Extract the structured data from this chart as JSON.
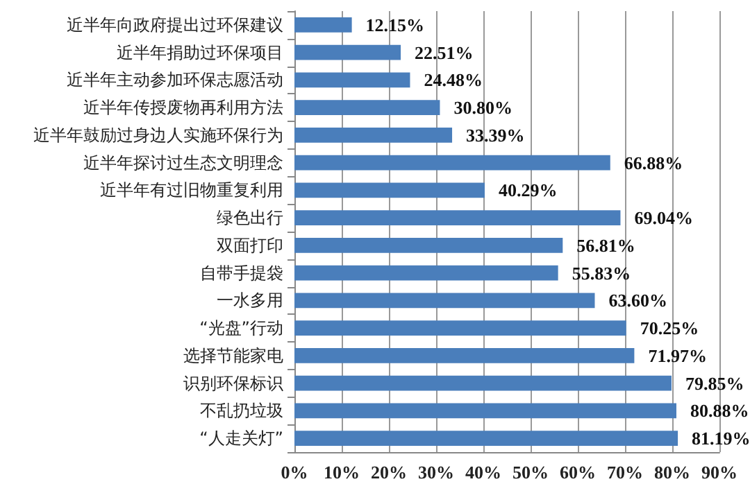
{
  "chart_data": {
    "type": "bar",
    "orientation": "horizontal",
    "categories": [
      "近半年向政府提出过环保建议",
      "近半年捐助过环保项目",
      "近半年主动参加环保志愿活动",
      "近半年传授废物再利用方法",
      "近半年鼓励过身边人实施环保行为",
      "近半年探讨过生态文明理念",
      "近半年有过旧物重复利用",
      "绿色出行",
      "双面打印",
      "自带手提袋",
      "一水多用",
      "“光盘”行动",
      "选择节能家电",
      "识别环保标识",
      "不乱扔垃圾",
      "“人走关灯”"
    ],
    "values": [
      12.15,
      22.51,
      24.48,
      30.8,
      33.39,
      66.88,
      40.29,
      69.04,
      56.81,
      55.83,
      63.6,
      70.25,
      71.97,
      79.85,
      80.88,
      81.19
    ],
    "value_labels": [
      "12.15%",
      "22.51%",
      "24.48%",
      "30.80%",
      "33.39%",
      "66.88%",
      "40.29%",
      "69.04%",
      "56.81%",
      "55.83%",
      "63.60%",
      "70.25%",
      "71.97%",
      "79.85%",
      "80.88%",
      "81.19%"
    ],
    "color": "#4a7ebb",
    "xlim": [
      0,
      90
    ],
    "xticks": [
      {
        "value": 0,
        "label": "0%"
      },
      {
        "value": 10,
        "label": "10%"
      },
      {
        "value": 20,
        "label": "20%"
      },
      {
        "value": 30,
        "label": "30%"
      },
      {
        "value": 40,
        "label": "40%"
      },
      {
        "value": 50,
        "label": "50%"
      },
      {
        "value": 60,
        "label": "60%"
      },
      {
        "value": 70,
        "label": "70%"
      },
      {
        "value": 80,
        "label": "80%"
      },
      {
        "value": 90,
        "label": "90%"
      }
    ],
    "grid": "x"
  }
}
